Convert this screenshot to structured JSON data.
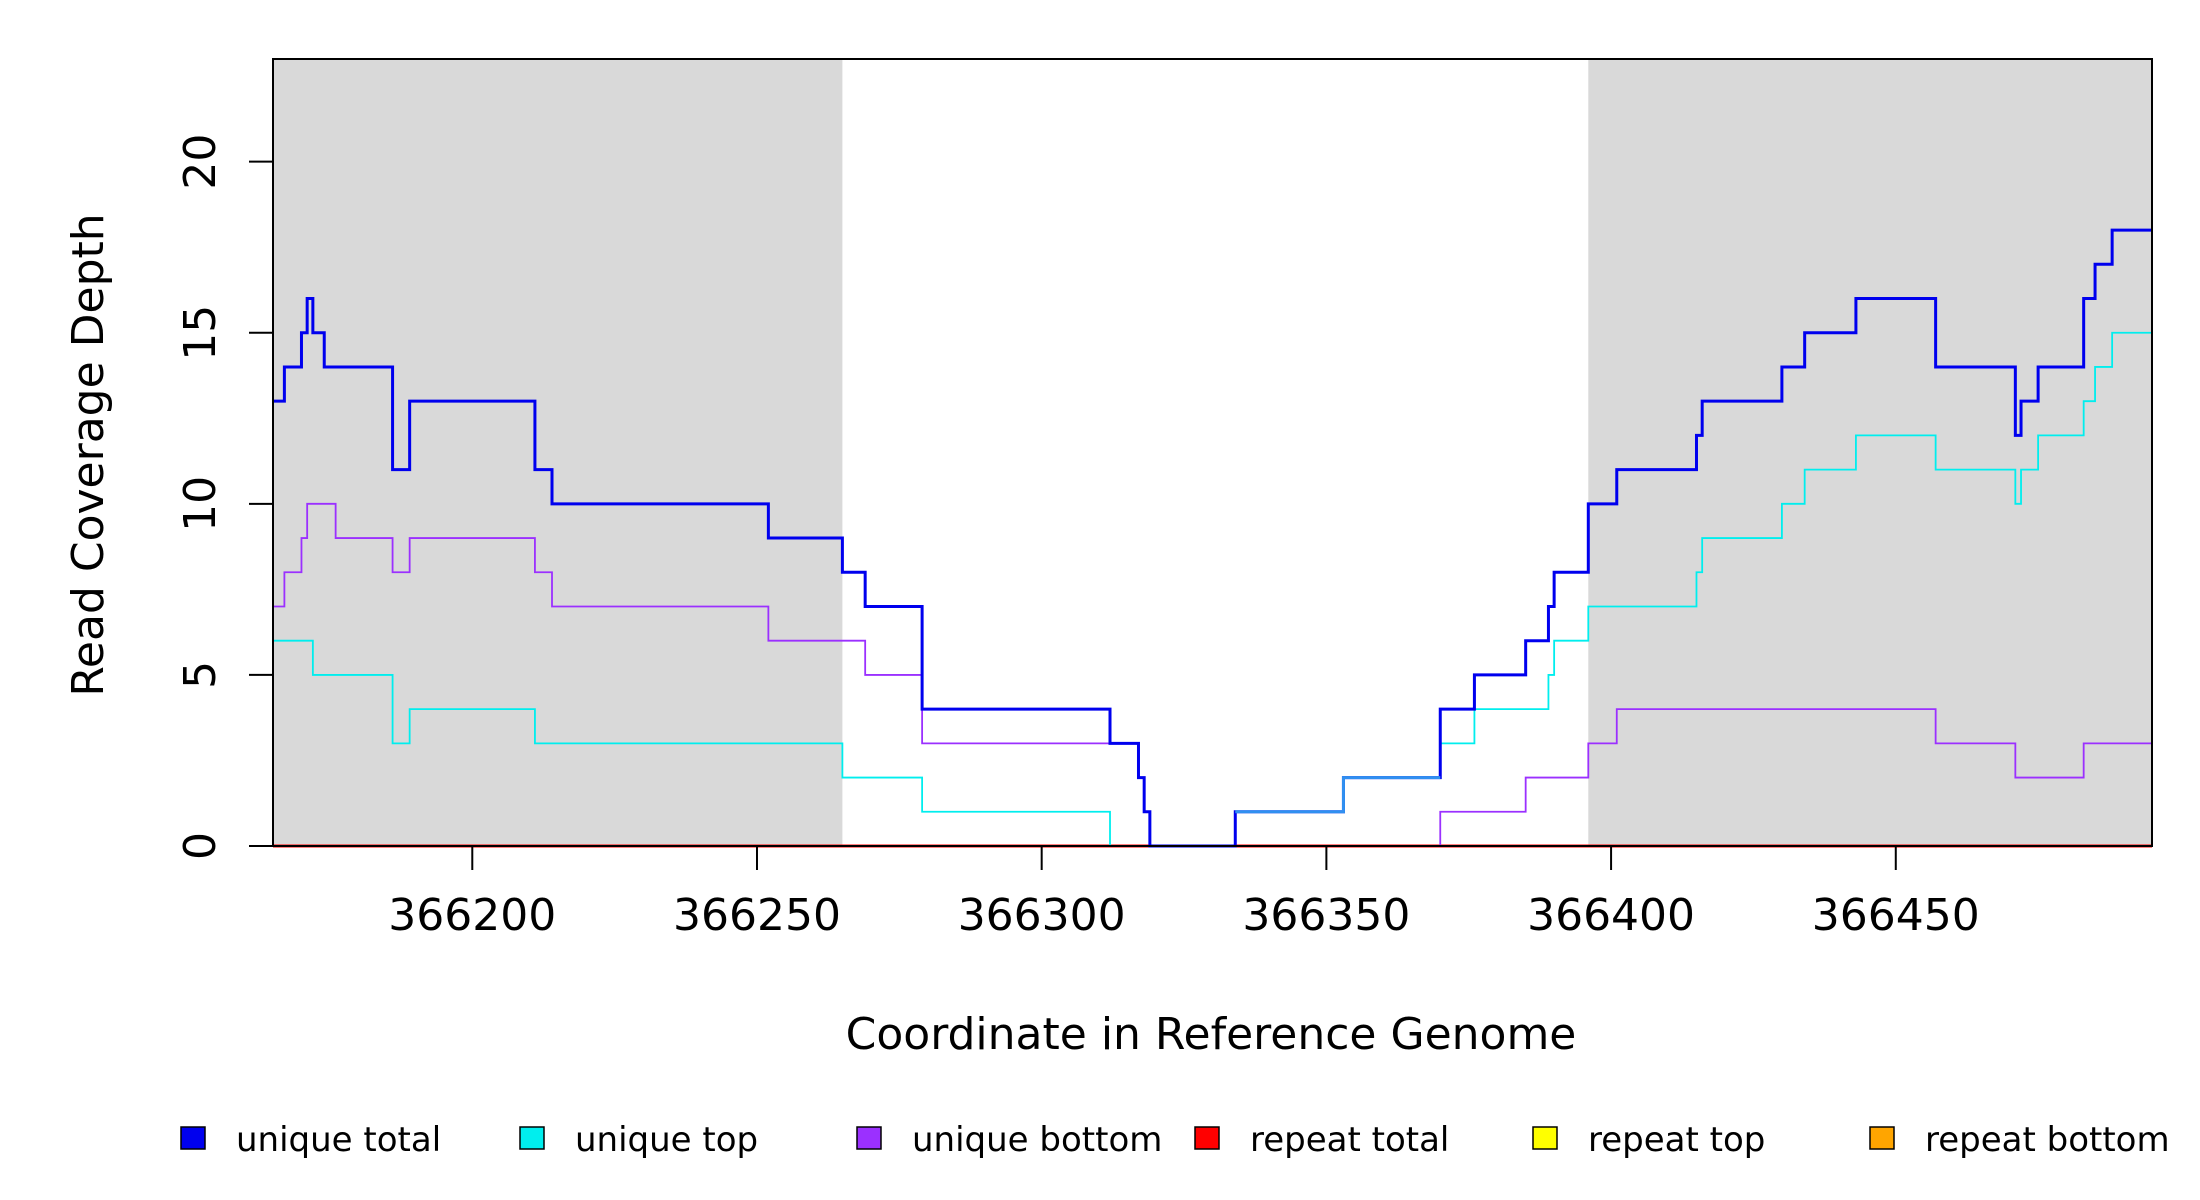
{
  "chart_data": {
    "type": "line",
    "title": "",
    "xlabel": "Coordinate in Reference Genome",
    "ylabel": "Read Coverage Depth",
    "xlim": [
      366165,
      366495
    ],
    "ylim": [
      0,
      23
    ],
    "x_ticks": [
      366200,
      366250,
      366300,
      366350,
      366400,
      366450
    ],
    "y_ticks": [
      0,
      5,
      10,
      15,
      20
    ],
    "x_tick_labels": [
      "366200",
      "366250",
      "366300",
      "366350",
      "366400",
      "366450"
    ],
    "y_tick_labels": [
      "0",
      "5",
      "10",
      "15",
      "20"
    ],
    "shaded_regions": [
      [
        366165,
        366265
      ],
      [
        366396,
        366495
      ]
    ],
    "grid": false,
    "legend_position": "bottom",
    "series": [
      {
        "name": "unique total",
        "color": "#0000ee",
        "step_x": [
          366165,
          366167,
          366170,
          366170,
          366171,
          366171,
          366172,
          366172,
          366173,
          366174,
          366176,
          366186,
          366189,
          366211,
          366214,
          366252,
          366265,
          366269,
          366279,
          366312,
          366317,
          366318,
          366319,
          366334,
          366353,
          366370,
          366376,
          366385,
          366389,
          366390,
          366396,
          366401,
          366415,
          366416,
          366430,
          366434,
          366443,
          366457,
          366471,
          366472,
          366475,
          366483,
          366485,
          366488,
          366495
        ],
        "step_y": [
          13,
          14,
          14,
          15,
          15,
          16,
          16,
          15,
          15,
          14,
          14,
          11,
          13,
          11,
          10,
          9,
          8,
          7,
          4,
          3,
          2,
          1,
          0,
          1,
          2,
          4,
          5,
          6,
          7,
          8,
          10,
          11,
          12,
          13,
          14,
          15,
          16,
          14,
          12,
          13,
          14,
          16,
          17,
          18,
          18
        ]
      },
      {
        "name": "unique top",
        "color": "#00eeee",
        "step_x": [
          366165,
          366172,
          366186,
          366189,
          366211,
          366265,
          366279,
          366312,
          366319,
          366334,
          366353,
          366370,
          366376,
          366389,
          366390,
          366396,
          366415,
          366416,
          366430,
          366434,
          366443,
          366457,
          366471,
          366472,
          366475,
          366483,
          366485,
          366488,
          366495
        ],
        "step_y": [
          6,
          5,
          3,
          4,
          3,
          2,
          1,
          0,
          0,
          1,
          2,
          3,
          4,
          5,
          6,
          7,
          8,
          9,
          10,
          11,
          12,
          11,
          10,
          11,
          12,
          13,
          14,
          15,
          15
        ]
      },
      {
        "name": "unique bottom",
        "color": "#9b30ff",
        "step_x": [
          366165,
          366167,
          366170,
          366171,
          366176,
          366186,
          366189,
          366211,
          366214,
          366252,
          366269,
          366279,
          366317,
          366318,
          366319,
          366370,
          366385,
          366396,
          366401,
          366457,
          366471,
          366483,
          366495
        ],
        "step_y": [
          7,
          8,
          9,
          10,
          9,
          8,
          9,
          8,
          7,
          6,
          5,
          3,
          2,
          1,
          0,
          1,
          2,
          3,
          4,
          3,
          2,
          3,
          3
        ]
      },
      {
        "name": "repeat total",
        "color": "#ff0000",
        "step_x": [
          366165,
          366495
        ],
        "step_y": [
          0,
          0
        ]
      },
      {
        "name": "repeat top",
        "color": "#ffff00",
        "step_x": [
          366165,
          366495
        ],
        "step_y": [
          0,
          0
        ]
      },
      {
        "name": "repeat bottom",
        "color": "#ffa500",
        "step_x": [
          366165,
          366495
        ],
        "step_y": [
          0,
          0
        ]
      }
    ]
  },
  "legend": {
    "items": [
      {
        "label": "unique total",
        "color": "#0000ee"
      },
      {
        "label": "unique top",
        "color": "#00eeee"
      },
      {
        "label": "unique bottom",
        "color": "#9b30ff"
      },
      {
        "label": "repeat total",
        "color": "#ff0000"
      },
      {
        "label": "repeat top",
        "color": "#ffff00"
      },
      {
        "label": "repeat bottom",
        "color": "#ffa500"
      }
    ]
  },
  "colors": {
    "shade": "#d9d9d9",
    "axis": "#000000",
    "overlap": "#3090f0"
  }
}
